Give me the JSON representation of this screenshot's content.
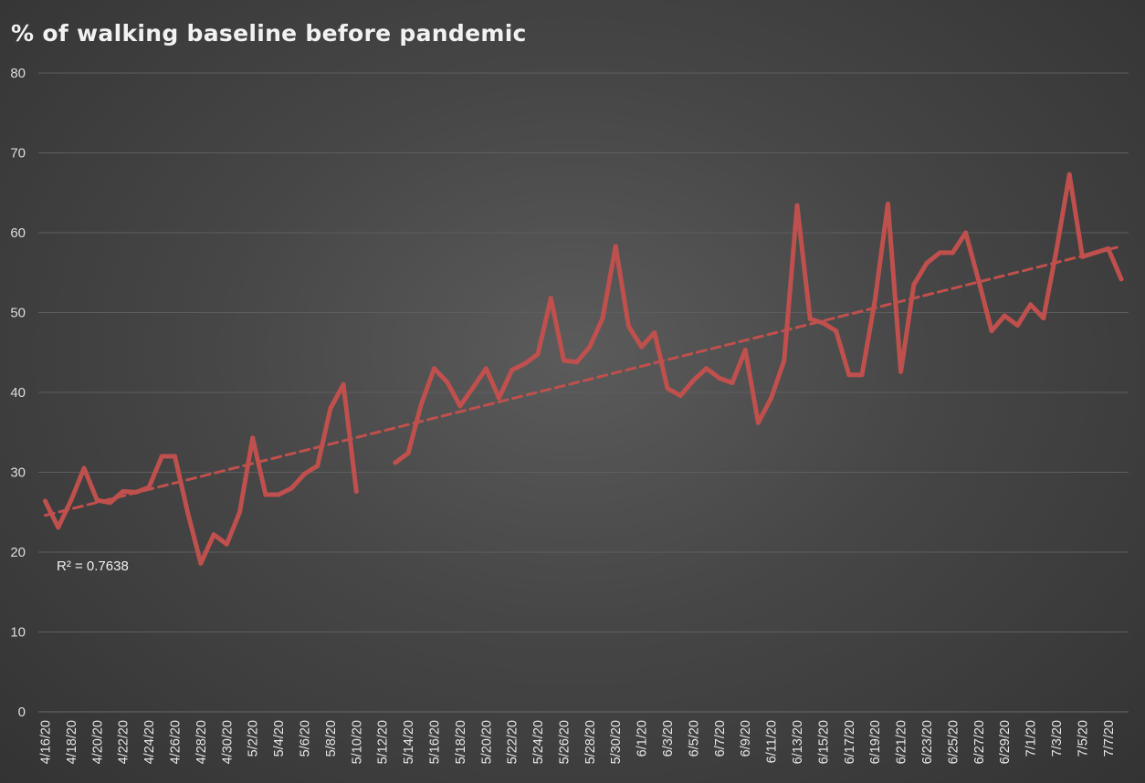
{
  "chart_data": {
    "type": "line",
    "title": "% of walking baseline before pandemic",
    "xlabel": "",
    "ylabel": "",
    "ylim": [
      0,
      80
    ],
    "yticks": [
      0,
      10,
      20,
      30,
      40,
      50,
      60,
      70,
      80
    ],
    "grid": true,
    "legend": "none",
    "x": [
      "4/16/20",
      "4/17/20",
      "4/18/20",
      "4/19/20",
      "4/20/20",
      "4/21/20",
      "4/22/20",
      "4/23/20",
      "4/24/20",
      "4/25/20",
      "4/26/20",
      "4/27/20",
      "4/28/20",
      "4/29/20",
      "4/30/20",
      "5/1/20",
      "5/2/20",
      "5/3/20",
      "5/4/20",
      "5/5/20",
      "5/6/20",
      "5/7/20",
      "5/8/20",
      "5/9/20",
      "5/10/20",
      "5/11/20",
      "5/12/20",
      "5/13/20",
      "5/14/20",
      "5/15/20",
      "5/16/20",
      "5/17/20",
      "5/18/20",
      "5/19/20",
      "5/20/20",
      "5/21/20",
      "5/22/20",
      "5/23/20",
      "5/24/20",
      "5/25/20",
      "5/26/20",
      "5/27/20",
      "5/28/20",
      "5/29/20",
      "5/30/20",
      "5/31/20",
      "6/1/20",
      "6/2/20",
      "6/3/20",
      "6/4/20",
      "6/5/20",
      "6/6/20",
      "6/7/20",
      "6/8/20",
      "6/9/20",
      "6/10/20",
      "6/11/20",
      "6/12/20",
      "6/13/20",
      "6/14/20",
      "6/15/20",
      "6/16/20",
      "6/17/20",
      "6/18/20",
      "6/19/20",
      "6/20/20",
      "6/21/20",
      "6/22/20",
      "6/23/20",
      "6/24/20",
      "6/25/20",
      "6/26/20",
      "6/27/20",
      "6/28/20",
      "6/29/20",
      "6/30/20",
      "7/1/20",
      "7/2/20",
      "7/3/20",
      "7/4/20",
      "7/5/20",
      "7/6/20",
      "7/7/20",
      "7/8/20"
    ],
    "x_tick_labels": [
      "4/16/20",
      "4/18/20",
      "4/20/20",
      "4/22/20",
      "4/24/20",
      "4/26/20",
      "4/28/20",
      "4/30/20",
      "5/2/20",
      "5/4/20",
      "5/6/20",
      "5/8/20",
      "5/10/20",
      "5/12/20",
      "5/14/20",
      "5/16/20",
      "5/18/20",
      "5/20/20",
      "5/22/20",
      "5/24/20",
      "5/26/20",
      "5/28/20",
      "5/30/20",
      "6/1/20",
      "6/3/20",
      "6/5/20",
      "6/7/20",
      "6/9/20",
      "6/11/20",
      "6/13/20",
      "6/15/20",
      "6/17/20",
      "6/19/20",
      "6/21/20",
      "6/23/20",
      "6/25/20",
      "6/27/20",
      "6/29/20",
      "7/1/20",
      "7/3/20",
      "7/5/20",
      "7/7/20"
    ],
    "series": [
      {
        "color": "#c0504d",
        "values": [
          26.4,
          23.1,
          26.5,
          30.5,
          26.5,
          26.2,
          27.6,
          27.5,
          28.1,
          32.0,
          32.0,
          24.9,
          18.6,
          22.2,
          21.0,
          25.0,
          34.3,
          27.2,
          27.2,
          28.0,
          29.8,
          30.8,
          38.0,
          41.0,
          27.6,
          null,
          null,
          31.2,
          32.4,
          38.5,
          43.0,
          41.3,
          38.3,
          40.6,
          43.0,
          39.3,
          42.8,
          43.6,
          44.8,
          51.8,
          44.0,
          43.8,
          45.7,
          49.3,
          58.3,
          48.3,
          45.7,
          47.5,
          40.5,
          39.6,
          41.5,
          43.0,
          41.8,
          41.2,
          45.3,
          36.2,
          39.3,
          44.0,
          63.4,
          49.2,
          48.7,
          47.7,
          42.2,
          42.2,
          51.5,
          63.6,
          42.6,
          53.5,
          56.2,
          57.5,
          57.5,
          60.0,
          54.0,
          47.7,
          49.6,
          48.4,
          51.0,
          49.3,
          57.8,
          67.3,
          57.0,
          57.5,
          58.0,
          54.2
        ]
      }
    ],
    "trendline": {
      "type": "linear",
      "style": "dashed",
      "color": "#c0504d",
      "start": 24.6,
      "end": 58.3,
      "r2_label": "R² = 0.7638"
    }
  }
}
